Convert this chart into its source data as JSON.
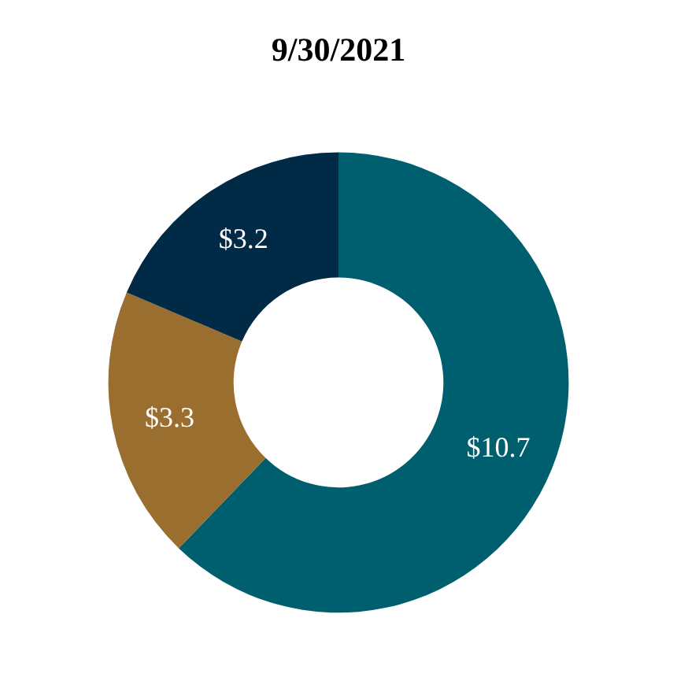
{
  "chart_data": {
    "type": "donut",
    "title": "9/30/2021",
    "categories": [
      null,
      null,
      null
    ],
    "values": [
      10.7,
      3.3,
      3.2
    ],
    "colors": [
      "#005f6e",
      "#9a6e2e",
      "#002a45"
    ],
    "value_labels": [
      "$10.7",
      "$3.3",
      "$3.2"
    ]
  }
}
